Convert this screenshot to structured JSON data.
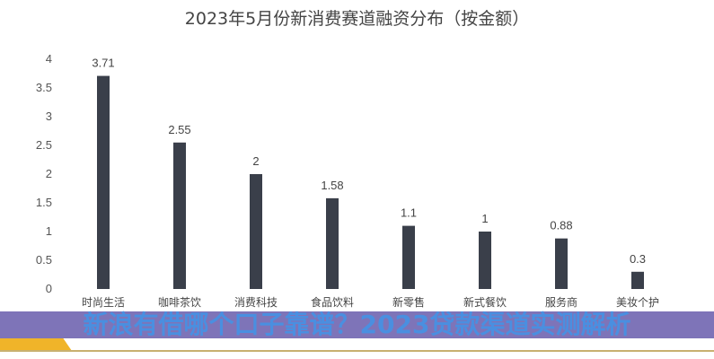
{
  "chart_data": {
    "type": "bar",
    "title": "2023年5月份新消费赛道融资分布（按金额）",
    "categories": [
      "时尚生活",
      "咖啡茶饮",
      "消费科技",
      "食品饮料",
      "新零售",
      "新式餐饮",
      "服务商",
      "美妆个护"
    ],
    "values": [
      3.71,
      2.55,
      2,
      1.58,
      1.1,
      1,
      0.88,
      0.3
    ],
    "data_labels": [
      "3.71",
      "2.55",
      "2",
      "1.58",
      "1.1",
      "1",
      "0.88",
      "0.3"
    ],
    "ylim": [
      0,
      4
    ],
    "yticks": [
      "0",
      "0.5",
      "1",
      "1.5",
      "2",
      "2.5",
      "3",
      "3.5",
      "4"
    ],
    "grid": false,
    "bar_color": "#3a3f4a"
  },
  "banner": {
    "text": "新浪有借哪个口子靠谱？2023贷款渠道实测解析",
    "text_color": "#4a8fe0"
  },
  "colors": {
    "accent": "#f0b429"
  }
}
